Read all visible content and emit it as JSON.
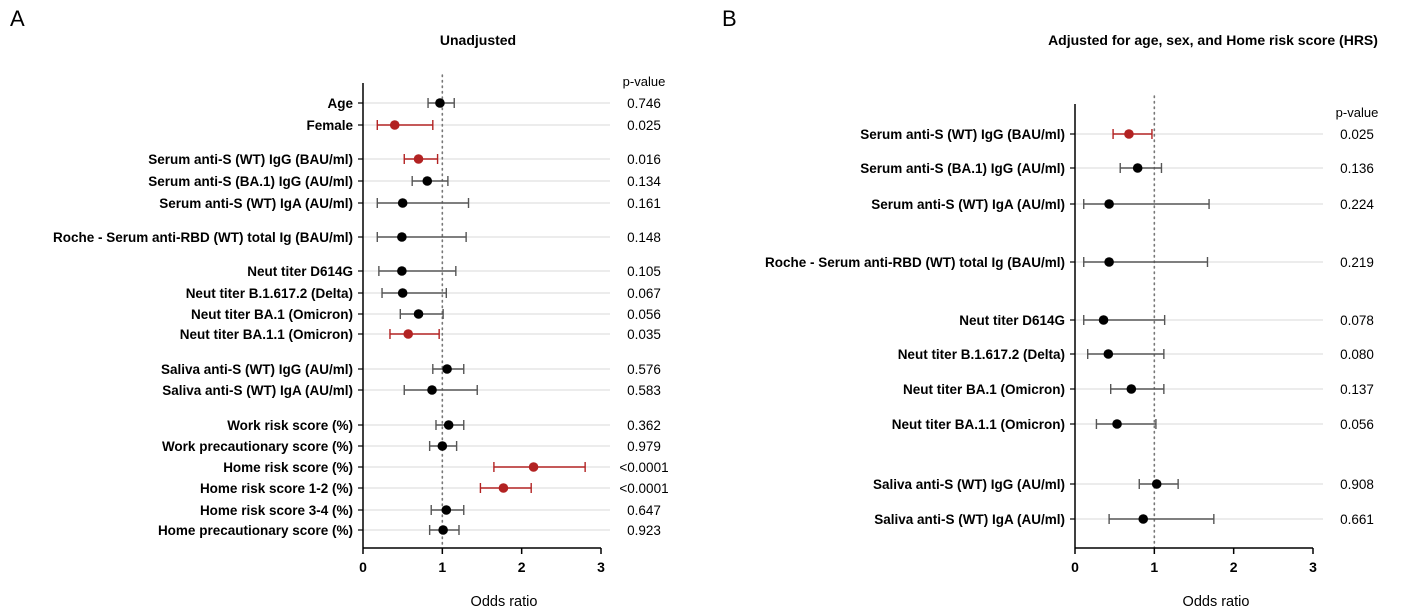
{
  "chart_data": [
    {
      "type": "forest",
      "panel": "A",
      "title": "Unadjusted",
      "xlabel": "Odds ratio",
      "xlim": [
        0,
        3
      ],
      "xticks": [
        "0",
        "1",
        "2",
        "3"
      ],
      "reference_line": 1,
      "pvalue_header": "p-value",
      "rows": [
        {
          "label": "Age",
          "or": 0.97,
          "ci": [
            0.82,
            1.15
          ],
          "p": "0.746",
          "significant": false,
          "group": 0
        },
        {
          "label": "Female",
          "or": 0.4,
          "ci": [
            0.18,
            0.88
          ],
          "p": "0.025",
          "significant": true,
          "group": 0
        },
        {
          "label": "Serum anti-S (WT) IgG (BAU/ml)",
          "or": 0.7,
          "ci": [
            0.52,
            0.94
          ],
          "p": "0.016",
          "significant": true,
          "group": 1
        },
        {
          "label": "Serum anti-S (BA.1) IgG (AU/ml)",
          "or": 0.81,
          "ci": [
            0.62,
            1.07
          ],
          "p": "0.134",
          "significant": false,
          "group": 1
        },
        {
          "label": "Serum anti-S (WT) IgA (AU/ml)",
          "or": 0.5,
          "ci": [
            0.18,
            1.33
          ],
          "p": "0.161",
          "significant": false,
          "group": 1
        },
        {
          "label": "Roche - Serum anti-RBD (WT) total Ig (BAU/ml)",
          "or": 0.49,
          "ci": [
            0.18,
            1.3
          ],
          "p": "0.148",
          "significant": false,
          "group": 2
        },
        {
          "label": "Neut titer D614G",
          "or": 0.49,
          "ci": [
            0.2,
            1.17
          ],
          "p": "0.105",
          "significant": false,
          "group": 3
        },
        {
          "label": "Neut titer B.1.617.2 (Delta)",
          "or": 0.5,
          "ci": [
            0.24,
            1.05
          ],
          "p": "0.067",
          "significant": false,
          "group": 3
        },
        {
          "label": "Neut titer BA.1 (Omicron)",
          "or": 0.7,
          "ci": [
            0.47,
            1.01
          ],
          "p": "0.056",
          "significant": false,
          "group": 3
        },
        {
          "label": "Neut titer BA.1.1 (Omicron)",
          "or": 0.57,
          "ci": [
            0.34,
            0.96
          ],
          "p": "0.035",
          "significant": true,
          "group": 3
        },
        {
          "label": "Saliva anti-S (WT) IgG (AU/ml)",
          "or": 1.06,
          "ci": [
            0.88,
            1.27
          ],
          "p": "0.576",
          "significant": false,
          "group": 4
        },
        {
          "label": "Saliva anti-S (WT) IgA (AU/ml)",
          "or": 0.87,
          "ci": [
            0.52,
            1.44
          ],
          "p": "0.583",
          "significant": false,
          "group": 4
        },
        {
          "label": "Work risk score (%)",
          "or": 1.08,
          "ci": [
            0.92,
            1.27
          ],
          "p": "0.362",
          "significant": false,
          "group": 5
        },
        {
          "label": "Work precautionary score (%)",
          "or": 1.0,
          "ci": [
            0.84,
            1.18
          ],
          "p": "0.979",
          "significant": false,
          "group": 5
        },
        {
          "label": "Home risk score (%)",
          "or": 2.15,
          "ci": [
            1.65,
            2.8
          ],
          "p": "<0.0001",
          "significant": true,
          "group": 5
        },
        {
          "label": "Home risk score 1-2 (%)",
          "or": 1.77,
          "ci": [
            1.48,
            2.12
          ],
          "p": "<0.0001",
          "significant": true,
          "group": 5
        },
        {
          "label": "Home risk score 3-4 (%)",
          "or": 1.05,
          "ci": [
            0.86,
            1.27
          ],
          "p": "0.647",
          "significant": false,
          "group": 5
        },
        {
          "label": "Home precautionary score (%)",
          "or": 1.01,
          "ci": [
            0.84,
            1.21
          ],
          "p": "0.923",
          "significant": false,
          "group": 5
        }
      ]
    },
    {
      "type": "forest",
      "panel": "B",
      "title": "Adjusted for age, sex, and Home risk score (HRS)",
      "xlabel": "Odds ratio",
      "xlim": [
        0,
        3
      ],
      "xticks": [
        "0",
        "1",
        "2",
        "3"
      ],
      "reference_line": 1,
      "pvalue_header": "p-value",
      "rows": [
        {
          "label": "Serum anti-S (WT) IgG (BAU/ml)",
          "or": 0.68,
          "ci": [
            0.48,
            0.97
          ],
          "p": "0.025",
          "significant": true,
          "group": 0
        },
        {
          "label": "Serum anti-S (BA.1) IgG (AU/ml)",
          "or": 0.79,
          "ci": [
            0.57,
            1.09
          ],
          "p": "0.136",
          "significant": false,
          "group": 0
        },
        {
          "label": "Serum anti-S (WT) IgA (AU/ml)",
          "or": 0.43,
          "ci": [
            0.11,
            1.69
          ],
          "p": "0.224",
          "significant": false,
          "group": 0
        },
        {
          "label": "Roche - Serum anti-RBD (WT) total Ig (BAU/ml)",
          "or": 0.43,
          "ci": [
            0.11,
            1.67
          ],
          "p": "0.219",
          "significant": false,
          "group": 1
        },
        {
          "label": "Neut titer D614G",
          "or": 0.36,
          "ci": [
            0.11,
            1.13
          ],
          "p": "0.078",
          "significant": false,
          "group": 2
        },
        {
          "label": "Neut titer B.1.617.2 (Delta)",
          "or": 0.42,
          "ci": [
            0.16,
            1.12
          ],
          "p": "0.080",
          "significant": false,
          "group": 2
        },
        {
          "label": "Neut titer BA.1 (Omicron)",
          "or": 0.71,
          "ci": [
            0.45,
            1.12
          ],
          "p": "0.137",
          "significant": false,
          "group": 2
        },
        {
          "label": "Neut titer BA.1.1 (Omicron)",
          "or": 0.53,
          "ci": [
            0.27,
            1.02
          ],
          "p": "0.056",
          "significant": false,
          "group": 2
        },
        {
          "label": "Saliva anti-S (WT) IgG (AU/ml)",
          "or": 1.03,
          "ci": [
            0.81,
            1.3
          ],
          "p": "0.908",
          "significant": false,
          "group": 3
        },
        {
          "label": "Saliva anti-S (WT) IgA (AU/ml)",
          "or": 0.86,
          "ci": [
            0.43,
            1.75
          ],
          "p": "0.661",
          "significant": false,
          "group": 3
        }
      ]
    }
  ],
  "colors": {
    "significant": "#b22222",
    "default": "#000000",
    "whisker_default": "#555555",
    "gridline": "#d9d9d9",
    "reference_line": "#777777"
  }
}
